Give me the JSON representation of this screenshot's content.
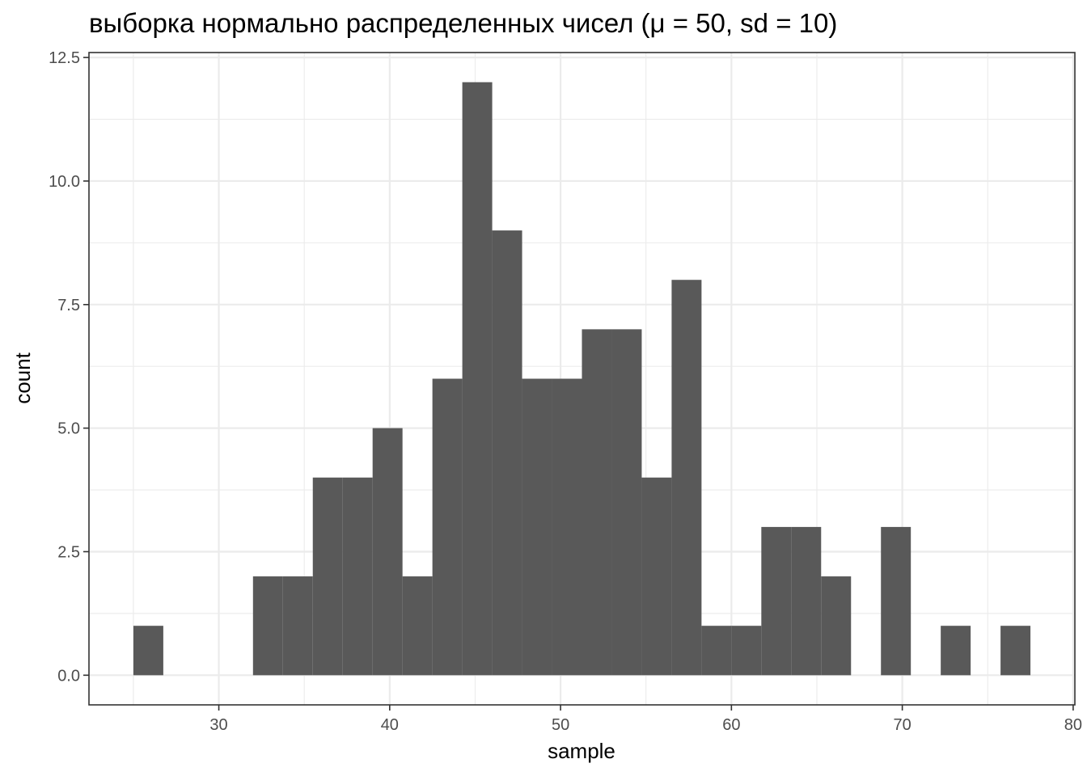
{
  "chart_data": {
    "type": "bar",
    "title": "выборка нормально распределенных чисел (μ = 50, sd = 10)",
    "xlabel": "sample",
    "ylabel": "count",
    "xlim": [
      22.4,
      80.1
    ],
    "ylim": [
      -0.6,
      12.6
    ],
    "x_ticks": [
      30,
      40,
      50,
      60,
      70,
      80
    ],
    "x_tick_labels": [
      "30",
      "40",
      "50",
      "60",
      "70",
      "80"
    ],
    "x_minor_ticks": [
      25,
      35,
      45,
      55,
      65,
      75
    ],
    "y_ticks": [
      0,
      2.5,
      5,
      7.5,
      10,
      12.5
    ],
    "y_tick_labels": [
      "0.0",
      "2.5",
      "5.0",
      "7.5",
      "10.0",
      "12.5"
    ],
    "y_minor_ticks": [
      1.25,
      3.75,
      6.25,
      8.75,
      11.25
    ],
    "grid": true,
    "bin_width": 1.75,
    "bins": [
      {
        "x0": 25.0,
        "x1": 26.75,
        "count": 1
      },
      {
        "x0": 26.75,
        "x1": 28.5,
        "count": 0
      },
      {
        "x0": 28.5,
        "x1": 30.25,
        "count": 0
      },
      {
        "x0": 30.25,
        "x1": 32.0,
        "count": 0
      },
      {
        "x0": 32.0,
        "x1": 33.75,
        "count": 2
      },
      {
        "x0": 33.75,
        "x1": 35.5,
        "count": 2
      },
      {
        "x0": 35.5,
        "x1": 37.25,
        "count": 4
      },
      {
        "x0": 37.25,
        "x1": 39.0,
        "count": 4
      },
      {
        "x0": 39.0,
        "x1": 40.75,
        "count": 5
      },
      {
        "x0": 40.75,
        "x1": 42.5,
        "count": 2
      },
      {
        "x0": 42.5,
        "x1": 44.25,
        "count": 6
      },
      {
        "x0": 44.25,
        "x1": 46.0,
        "count": 12
      },
      {
        "x0": 46.0,
        "x1": 47.75,
        "count": 9
      },
      {
        "x0": 47.75,
        "x1": 49.5,
        "count": 6
      },
      {
        "x0": 49.5,
        "x1": 51.25,
        "count": 6
      },
      {
        "x0": 51.25,
        "x1": 53.0,
        "count": 7
      },
      {
        "x0": 53.0,
        "x1": 54.75,
        "count": 7
      },
      {
        "x0": 54.75,
        "x1": 56.5,
        "count": 4
      },
      {
        "x0": 56.5,
        "x1": 58.25,
        "count": 8
      },
      {
        "x0": 58.25,
        "x1": 60.0,
        "count": 1
      },
      {
        "x0": 60.0,
        "x1": 61.75,
        "count": 1
      },
      {
        "x0": 61.75,
        "x1": 63.5,
        "count": 3
      },
      {
        "x0": 63.5,
        "x1": 65.25,
        "count": 3
      },
      {
        "x0": 65.25,
        "x1": 67.0,
        "count": 2
      },
      {
        "x0": 67.0,
        "x1": 68.75,
        "count": 0
      },
      {
        "x0": 68.75,
        "x1": 70.5,
        "count": 3
      },
      {
        "x0": 70.5,
        "x1": 72.25,
        "count": 0
      },
      {
        "x0": 72.25,
        "x1": 74.0,
        "count": 1
      },
      {
        "x0": 74.0,
        "x1": 75.75,
        "count": 0
      },
      {
        "x0": 75.75,
        "x1": 77.5,
        "count": 1
      }
    ],
    "colors": {
      "bar": "#595959",
      "panel_background": "#ffffff",
      "grid": "#ebebeb",
      "border": "#333333",
      "tick_label": "#4d4d4d"
    }
  }
}
